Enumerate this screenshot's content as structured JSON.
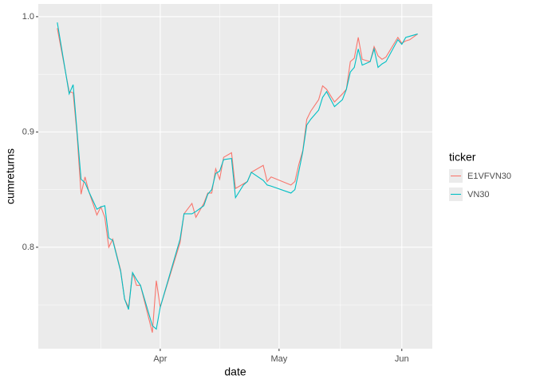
{
  "chart_data": {
    "type": "line",
    "x_label": "date",
    "y_label": "cumreturns",
    "legend_title": "ticker",
    "legend_position": "right",
    "grid": true,
    "xlim": [
      60.2,
      159.7
    ],
    "xticks": [
      {
        "value": 91,
        "label": "Apr"
      },
      {
        "value": 121,
        "label": "May"
      },
      {
        "value": 152,
        "label": "Jun"
      }
    ],
    "ylim": [
      0.712,
      1.011
    ],
    "yticks": [
      0.8,
      0.9,
      {
        "value": 1,
        "label": "1.0"
      }
    ],
    "x": [
      65,
      68,
      69,
      70,
      71,
      72,
      73,
      75,
      76,
      77,
      78,
      79,
      81,
      82,
      83,
      84,
      85,
      86,
      89,
      90,
      91,
      96,
      97,
      99,
      100,
      102,
      103,
      104,
      105,
      106,
      107,
      109,
      110,
      112,
      113,
      114,
      117,
      118,
      119,
      124,
      125,
      126,
      127,
      128,
      129,
      131,
      132,
      133,
      135,
      137,
      138,
      139,
      140,
      141,
      142,
      144,
      145,
      146,
      147,
      148,
      151,
      152,
      153,
      154,
      156
    ],
    "series": [
      {
        "name": "E1VFVN30",
        "color": "#F8766D",
        "values": [
          0.99,
          0.935,
          0.934,
          0.897,
          0.846,
          0.861,
          0.848,
          0.828,
          0.835,
          0.826,
          0.8,
          0.807,
          0.78,
          0.755,
          0.748,
          0.778,
          0.767,
          0.767,
          0.726,
          0.771,
          0.748,
          0.804,
          0.829,
          0.838,
          0.826,
          0.838,
          0.847,
          0.847,
          0.868,
          0.859,
          0.878,
          0.882,
          0.851,
          0.855,
          0.857,
          0.865,
          0.871,
          0.857,
          0.861,
          0.854,
          0.857,
          0.872,
          0.884,
          0.911,
          0.918,
          0.928,
          0.94,
          0.937,
          0.926,
          0.933,
          0.937,
          0.961,
          0.964,
          0.982,
          0.963,
          0.961,
          0.974,
          0.966,
          0.963,
          0.965,
          0.982,
          0.977,
          0.979,
          0.98,
          0.985
        ]
      },
      {
        "name": "VN30",
        "color": "#00BFC4",
        "values": [
          0.995,
          0.933,
          0.941,
          0.9,
          0.859,
          0.856,
          0.848,
          0.833,
          0.835,
          0.836,
          0.808,
          0.806,
          0.779,
          0.755,
          0.746,
          0.778,
          0.772,
          0.767,
          0.732,
          0.729,
          0.748,
          0.807,
          0.829,
          0.829,
          0.831,
          0.836,
          0.846,
          0.85,
          0.864,
          0.866,
          0.876,
          0.877,
          0.843,
          0.854,
          0.857,
          0.865,
          0.858,
          0.854,
          0.853,
          0.847,
          0.85,
          0.866,
          0.883,
          0.906,
          0.911,
          0.919,
          0.93,
          0.935,
          0.922,
          0.928,
          0.937,
          0.952,
          0.956,
          0.972,
          0.958,
          0.961,
          0.972,
          0.956,
          0.959,
          0.961,
          0.98,
          0.976,
          0.982,
          0.983,
          0.985
        ]
      }
    ]
  }
}
